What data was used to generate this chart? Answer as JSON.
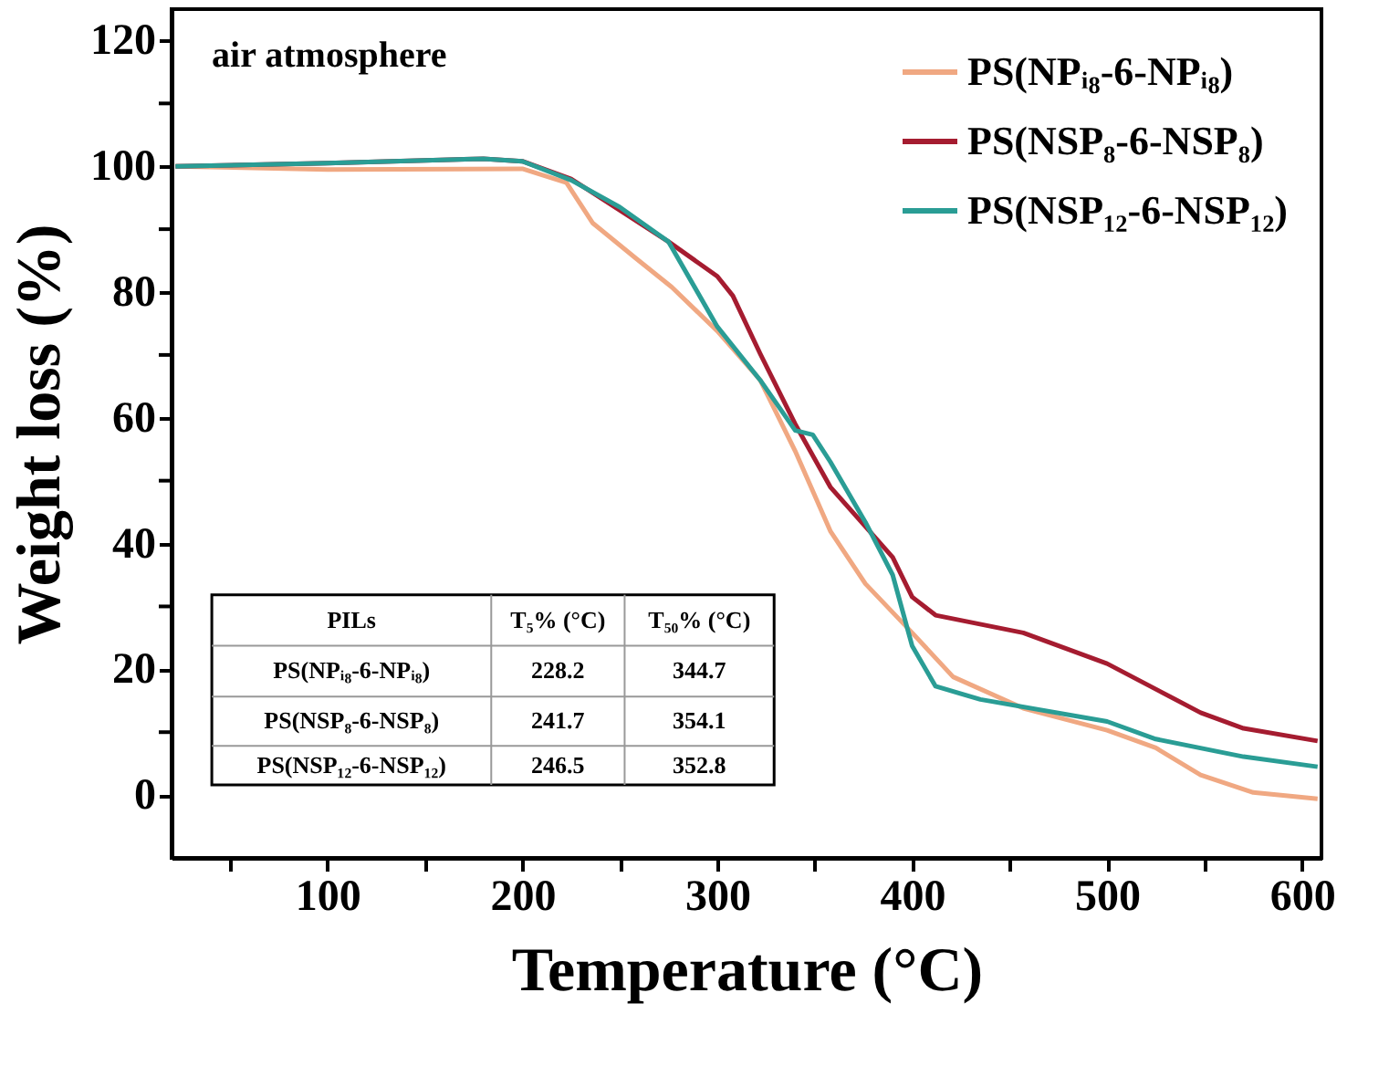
{
  "chart_data": {
    "type": "line",
    "xlabel": "Temperature (°C)",
    "ylabel": "Weight loss (%)",
    "xlim": [
      20,
      610
    ],
    "ylim": [
      -10,
      125
    ],
    "xticks": [
      {
        "value": 50,
        "label": null
      },
      100,
      {
        "value": 150,
        "label": null
      },
      200,
      {
        "value": 250,
        "label": null
      },
      300,
      {
        "value": 350,
        "label": null
      },
      400,
      {
        "value": 450,
        "label": null
      },
      500,
      {
        "value": 550,
        "label": null
      },
      600
    ],
    "yticks": [
      0,
      {
        "value": 10,
        "label": null
      },
      20,
      {
        "value": 30,
        "label": null
      },
      40,
      {
        "value": 50,
        "label": null
      },
      60,
      {
        "value": 70,
        "label": null
      },
      80,
      {
        "value": 90,
        "label": null
      },
      100,
      {
        "value": 110,
        "label": null
      },
      120
    ],
    "grid": false,
    "legend": "top right",
    "line_style": "solid",
    "marker": "none",
    "series": [
      {
        "name": "PS(NPᵢ₈-6-NPᵢ₈)",
        "color": "#f0a882",
        "x": [
          22,
          100,
          200,
          222.6,
          236,
          258.5,
          276.6,
          300,
          322,
          340,
          358,
          376,
          400,
          421,
          457,
          500,
          525,
          548,
          575,
          608
        ],
        "values": [
          100,
          99.5,
          99.6,
          97.4,
          91,
          85.3,
          80.8,
          73.8,
          66,
          54.7,
          42,
          33.6,
          25.8,
          18.8,
          13.8,
          10.3,
          7.5,
          3.2,
          0.4,
          -0.6
        ]
      },
      {
        "name": "PS(NSP₈-6-NSP₈)",
        "color": "#a51c30",
        "x": [
          22,
          100,
          180,
          200,
          225,
          250,
          275,
          300,
          308,
          322,
          340,
          358,
          376,
          390,
          400,
          412,
          457,
          500,
          548,
          570,
          608
        ],
        "values": [
          100,
          100.5,
          101.2,
          100.8,
          98,
          93,
          88,
          82.5,
          79.4,
          70.2,
          59,
          49,
          42.7,
          37.8,
          31.5,
          28.6,
          25.8,
          20.9,
          13.1,
          10.6,
          8.6
        ]
      },
      {
        "name": "PS(NSP₁₂-6-NSP₁₂)",
        "color": "#2a9d95",
        "x": [
          22,
          100,
          180,
          200,
          225,
          250,
          275,
          300,
          322,
          340,
          349,
          358,
          376,
          390,
          400,
          412,
          435,
          500,
          525,
          570,
          608
        ],
        "values": [
          100,
          100.5,
          101.2,
          100.8,
          97.8,
          93.5,
          88,
          74.5,
          66,
          58,
          57.3,
          53,
          43.4,
          35,
          23.7,
          17.3,
          15.2,
          11.7,
          8.9,
          6.1,
          4.5
        ]
      }
    ],
    "annotations": [
      "air atmosphere",
      "PILs",
      "T₅% (°C)",
      "T₅₀% (°C)",
      "PS(NPᵢ₈-6-NPᵢ₈)",
      "228.2",
      "344.7",
      "PS(NSP₈-6-NSP₈)",
      "241.7",
      "354.1",
      "PS(NSP₁₂-6-NSP₁₂)",
      "246.5",
      "352.8"
    ]
  }
}
